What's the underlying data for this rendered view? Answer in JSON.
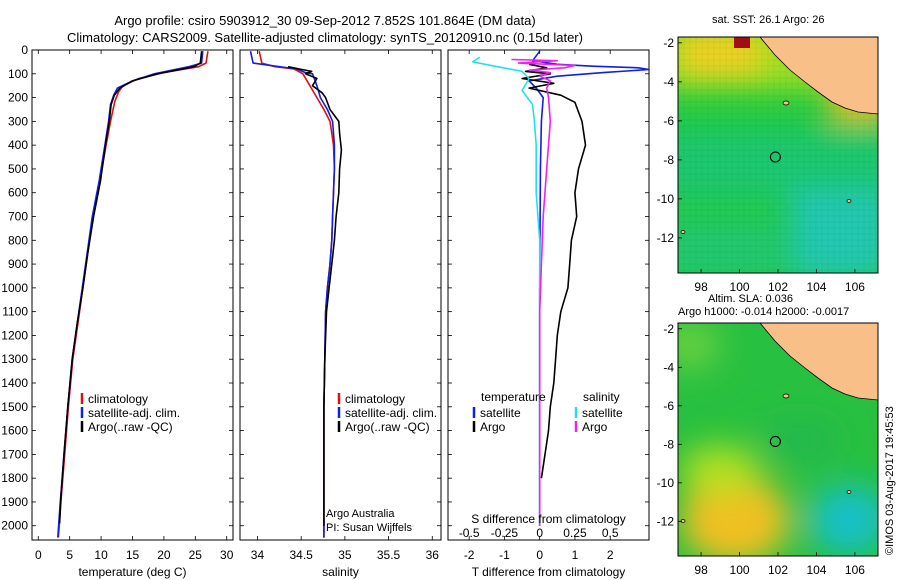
{
  "header": {
    "line1": "Argo profile: csiro 5903912_30 09-Sep-2012 7.852S 101.864E (DM data)",
    "line2": "Climatology: CARS2009. Satellite-adjusted climatology: synTS_20120910.nc (0.15d later)"
  },
  "colors": {
    "climatology": "#e01010",
    "satellite": "#1020e0",
    "argo": "#000000",
    "sat_salinity": "#20e0f0",
    "argo_salinity": "#f020f0",
    "land": "#f8c088"
  },
  "chart_data": [
    {
      "type": "line",
      "name": "temperature-profile",
      "xlabel": "temperature (deg C)",
      "xlim": [
        -1,
        31
      ],
      "ylim": [
        0,
        2060
      ],
      "xticks": [
        0,
        5,
        10,
        15,
        20,
        25,
        30
      ],
      "yticks": [
        0,
        100,
        200,
        300,
        400,
        500,
        600,
        700,
        800,
        900,
        1000,
        1100,
        1200,
        1300,
        1400,
        1500,
        1600,
        1700,
        1800,
        1900,
        2000
      ],
      "legend": [
        "climatology",
        "satellite-adj. clim.",
        "Argo(..raw -QC)"
      ],
      "series": [
        {
          "name": "climatology",
          "color": "#e01010",
          "points": [
            [
              27.0,
              5
            ],
            [
              26.7,
              55
            ],
            [
              25.5,
              70
            ],
            [
              20,
              95
            ],
            [
              16,
              120
            ],
            [
              13.5,
              150
            ],
            [
              12.8,
              175
            ],
            [
              12.2,
              215
            ],
            [
              11.5,
              300
            ],
            [
              10.8,
              400
            ],
            [
              9.8,
              550
            ],
            [
              8.7,
              700
            ],
            [
              7.9,
              850
            ],
            [
              7.1,
              1000
            ],
            [
              6.3,
              1150
            ],
            [
              5.5,
              1300
            ],
            [
              4.8,
              1500
            ],
            [
              4.2,
              1700
            ],
            [
              3.6,
              1900
            ],
            [
              3.2,
              2050
            ]
          ]
        },
        {
          "name": "satellite-adj. clim.",
          "color": "#1020e0",
          "points": [
            [
              26.2,
              5
            ],
            [
              26.0,
              55
            ],
            [
              24.0,
              70
            ],
            [
              18.5,
              100
            ],
            [
              15,
              130
            ],
            [
              12.6,
              160
            ],
            [
              12.0,
              190
            ],
            [
              11.5,
              230
            ],
            [
              11.2,
              300
            ],
            [
              10.6,
              400
            ],
            [
              9.7,
              550
            ],
            [
              8.6,
              700
            ],
            [
              7.8,
              850
            ],
            [
              7.0,
              1000
            ],
            [
              6.2,
              1150
            ],
            [
              5.4,
              1300
            ],
            [
              4.7,
              1500
            ],
            [
              4.1,
              1700
            ],
            [
              3.5,
              1900
            ],
            [
              3.1,
              2050
            ]
          ]
        },
        {
          "name": "Argo(..raw -QC)",
          "color": "#000000",
          "points": [
            [
              26.0,
              5
            ],
            [
              25.8,
              55
            ],
            [
              24.8,
              70
            ],
            [
              19,
              100
            ],
            [
              15,
              130
            ],
            [
              13.0,
              160
            ],
            [
              12.1,
              190
            ],
            [
              11.6,
              230
            ],
            [
              11.3,
              300
            ],
            [
              10.7,
              400
            ],
            [
              9.9,
              550
            ],
            [
              8.8,
              700
            ],
            [
              7.9,
              850
            ],
            [
              7.1,
              1000
            ],
            [
              6.2,
              1150
            ],
            [
              5.4,
              1300
            ],
            [
              4.7,
              1500
            ],
            [
              4.1,
              1700
            ],
            [
              3.6,
              1880
            ],
            [
              3.4,
              1990
            ]
          ]
        }
      ]
    },
    {
      "type": "line",
      "name": "salinity-profile",
      "xlabel": "salinity",
      "xlim": [
        33.8,
        36.1
      ],
      "ylim": [
        0,
        2060
      ],
      "xticks": [
        34,
        34.5,
        35,
        35.5,
        36
      ],
      "legend": [
        "climatology",
        "satellite-adj. clim.",
        "Argo(..raw -QC)"
      ],
      "note1": "Argo Australia",
      "note2": "PI: Susan Wijffels",
      "series": [
        {
          "name": "climatology",
          "color": "#e01010",
          "points": [
            [
              34.02,
              5
            ],
            [
              34.05,
              55
            ],
            [
              34.2,
              70
            ],
            [
              34.42,
              80
            ],
            [
              34.52,
              100
            ],
            [
              34.6,
              150
            ],
            [
              34.68,
              200
            ],
            [
              34.76,
              250
            ],
            [
              34.83,
              300
            ],
            [
              34.87,
              400
            ],
            [
              34.88,
              500
            ],
            [
              34.87,
              600
            ],
            [
              34.86,
              700
            ],
            [
              34.85,
              800
            ],
            [
              34.83,
              900
            ],
            [
              34.8,
              1000
            ],
            [
              34.78,
              1100
            ],
            [
              34.77,
              1300
            ],
            [
              34.76,
              1500
            ],
            [
              34.76,
              1800
            ],
            [
              34.76,
              2050
            ]
          ]
        },
        {
          "name": "satellite-adj. clim.",
          "color": "#1020e0",
          "points": [
            [
              33.92,
              5
            ],
            [
              33.95,
              55
            ],
            [
              34.25,
              70
            ],
            [
              34.45,
              80
            ],
            [
              34.55,
              95
            ],
            [
              34.63,
              100
            ],
            [
              34.68,
              150
            ],
            [
              34.72,
              200
            ],
            [
              34.8,
              250
            ],
            [
              34.86,
              300
            ],
            [
              34.88,
              400
            ],
            [
              34.88,
              500
            ],
            [
              34.87,
              600
            ],
            [
              34.86,
              700
            ],
            [
              34.85,
              800
            ],
            [
              34.83,
              900
            ],
            [
              34.8,
              1000
            ],
            [
              34.78,
              1100
            ],
            [
              34.77,
              1300
            ],
            [
              34.76,
              1500
            ],
            [
              34.76,
              1800
            ],
            [
              34.76,
              2050
            ]
          ]
        },
        {
          "name": "Argo(..raw -QC)",
          "color": "#000000",
          "points": [
            [
              34.35,
              70
            ],
            [
              34.48,
              80
            ],
            [
              34.62,
              90
            ],
            [
              34.55,
              100
            ],
            [
              34.68,
              120
            ],
            [
              34.63,
              150
            ],
            [
              34.74,
              180
            ],
            [
              34.78,
              200
            ],
            [
              34.83,
              250
            ],
            [
              34.93,
              300
            ],
            [
              34.94,
              350
            ],
            [
              34.96,
              420
            ],
            [
              34.94,
              500
            ],
            [
              34.93,
              600
            ],
            [
              34.9,
              700
            ],
            [
              34.88,
              800
            ],
            [
              34.85,
              900
            ],
            [
              34.82,
              1000
            ],
            [
              34.79,
              1100
            ],
            [
              34.77,
              1300
            ],
            [
              34.76,
              1500
            ],
            [
              34.76,
              1800
            ],
            [
              34.76,
              2000
            ]
          ]
        }
      ]
    },
    {
      "type": "line",
      "name": "difference-profile",
      "xlabel": "T difference from climatology",
      "xlabel_top": "S difference from climatology",
      "xlim": [
        -2.6,
        3.1
      ],
      "ylim": [
        0,
        2060
      ],
      "xticks": [
        -2,
        -1,
        0,
        1,
        2
      ],
      "sticks_labels": [
        "-0.5",
        "-0.25",
        "0",
        "0.25",
        "0.5"
      ],
      "legend_headers": [
        "temperature",
        "salinity"
      ],
      "legend_left": [
        "satellite",
        "Argo"
      ],
      "legend_right": [
        "satellite",
        "Argo"
      ],
      "series": [
        {
          "name": "T satellite",
          "color": "#1020e0",
          "points": [
            [
              0.0,
              5
            ],
            [
              -0.2,
              45
            ],
            [
              0.5,
              60
            ],
            [
              1.5,
              68
            ],
            [
              2.8,
              75
            ],
            [
              3.1,
              82
            ],
            [
              1.8,
              95
            ],
            [
              0.5,
              110
            ],
            [
              -0.3,
              130
            ],
            [
              -0.1,
              160
            ],
            [
              0.1,
              200
            ],
            [
              0.05,
              300
            ],
            [
              0.02,
              500
            ],
            [
              0.0,
              1000
            ],
            [
              0.0,
              1500
            ],
            [
              0.0,
              2000
            ]
          ]
        },
        {
          "name": "T Argo",
          "color": "#000000",
          "points": [
            [
              -0.3,
              60
            ],
            [
              0.2,
              75
            ],
            [
              -0.4,
              90
            ],
            [
              0.3,
              100
            ],
            [
              -0.5,
              120
            ],
            [
              0.4,
              140
            ],
            [
              -0.3,
              160
            ],
            [
              0.6,
              190
            ],
            [
              1.0,
              220
            ],
            [
              1.2,
              300
            ],
            [
              1.3,
              400
            ],
            [
              1.1,
              500
            ],
            [
              1.0,
              600
            ],
            [
              1.05,
              700
            ],
            [
              0.9,
              800
            ],
            [
              0.85,
              900
            ],
            [
              0.8,
              1000
            ],
            [
              0.6,
              1100
            ],
            [
              0.5,
              1200
            ],
            [
              0.45,
              1300
            ],
            [
              0.4,
              1400
            ],
            [
              0.3,
              1500
            ],
            [
              0.25,
              1600
            ],
            [
              0.15,
              1700
            ],
            [
              0.05,
              1800
            ]
          ]
        },
        {
          "name": "S satellite",
          "color": "#20e0f0",
          "points": [
            [
              -1.7,
              30
            ],
            [
              -1.9,
              50
            ],
            [
              -1.2,
              70
            ],
            [
              -0.5,
              90
            ],
            [
              -0.3,
              120
            ],
            [
              -0.5,
              170
            ],
            [
              -0.2,
              230
            ],
            [
              -0.15,
              300
            ],
            [
              -0.1,
              400
            ],
            [
              -0.1,
              600
            ],
            [
              0.0,
              800
            ],
            [
              0.0,
              1000
            ],
            [
              0.0,
              1500
            ],
            [
              0.0,
              2000
            ]
          ]
        },
        {
          "name": "S Argo",
          "color": "#f020f0",
          "points": [
            [
              -0.8,
              40
            ],
            [
              0.5,
              45
            ],
            [
              -0.6,
              55
            ],
            [
              1.0,
              65
            ],
            [
              0.7,
              75
            ],
            [
              -0.3,
              85
            ],
            [
              0.3,
              95
            ],
            [
              0.0,
              110
            ],
            [
              0.3,
              130
            ],
            [
              0.2,
              160
            ],
            [
              0.25,
              200
            ],
            [
              0.3,
              300
            ],
            [
              0.25,
              400
            ],
            [
              0.2,
              500
            ],
            [
              0.1,
              700
            ],
            [
              0.05,
              900
            ],
            [
              0.0,
              1100
            ],
            [
              0.0,
              1500
            ],
            [
              0.0,
              2000
            ]
          ]
        }
      ]
    }
  ],
  "maps": {
    "top": {
      "title": "sat. SST: 26.1  Argo: 26",
      "xticks": [
        98,
        100,
        102,
        104,
        106
      ],
      "yticks": [
        -2,
        -4,
        -6,
        -8,
        -10,
        -12
      ],
      "lonlim": [
        96.8,
        107.2
      ],
      "latlim": [
        -13.8,
        -1.7
      ],
      "argo_location": [
        101.864,
        -7.852
      ]
    },
    "bottom": {
      "title1": "Altim. SLA: 0.036",
      "title2": "Argo h1000: -0.014 h2000: -0.0017",
      "xticks": [
        98,
        100,
        102,
        104,
        106
      ],
      "yticks": [
        -2,
        -4,
        -6,
        -8,
        -10,
        -12
      ],
      "lonlim": [
        96.8,
        107.2
      ],
      "latlim": [
        -13.8,
        -1.7
      ],
      "argo_location": [
        101.864,
        -7.852
      ]
    }
  },
  "stamp": "©IMOS 03-Aug-2017 19:45:53"
}
